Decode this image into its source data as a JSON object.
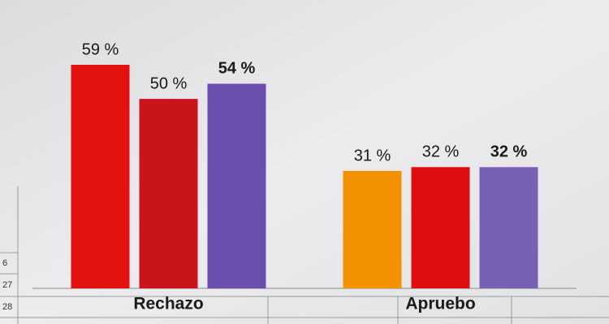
{
  "chart_data": {
    "type": "bar",
    "categories": [
      "Rechazo",
      "Apruebo"
    ],
    "series": [
      {
        "colors": [
          "#e3120f",
          "#f39200"
        ],
        "values": [
          59,
          31
        ],
        "value_labels": [
          "59 %",
          "31 %"
        ]
      },
      {
        "colors": [
          "#c9141c",
          "#de0d10"
        ],
        "values": [
          50,
          32
        ],
        "value_labels": [
          "50 %",
          "32 %"
        ]
      },
      {
        "colors": [
          "#6b4fae",
          "#7860b4"
        ],
        "values": [
          54,
          32
        ],
        "value_labels": [
          "54 %",
          "32 %"
        ],
        "label_weight": "bold"
      }
    ]
  },
  "spreadsheet": {
    "row_numbers": [
      "6",
      "27",
      "28"
    ]
  }
}
